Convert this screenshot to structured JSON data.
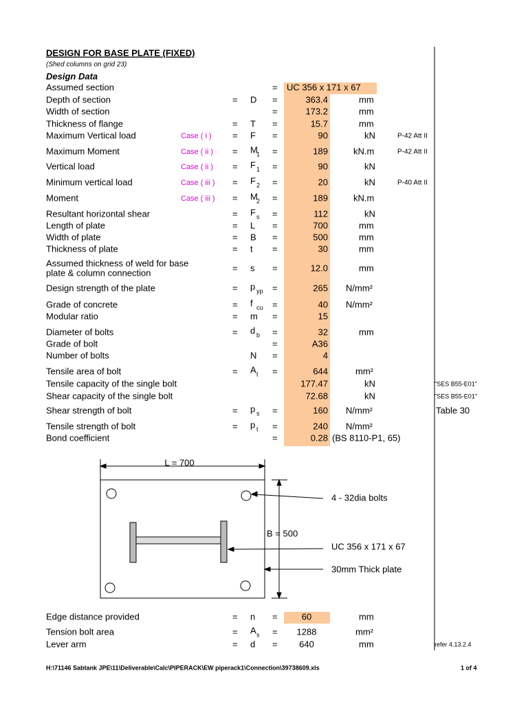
{
  "header": {
    "title": "DESIGN FOR BASE PLATE (FIXED)",
    "subtitle": "(Shed columns on grid 23)",
    "section": "Design Data"
  },
  "rows": [
    {
      "label": [
        "Assumed section"
      ],
      "eq2": "=",
      "value": "UC 356 x 171 x 67"
    },
    {
      "label": [
        "Depth of section"
      ],
      "eq1": "=",
      "sym": "D",
      "eq2": "=",
      "value": "363.4",
      "unit": "mm"
    },
    {
      "label": [
        "Width of section"
      ],
      "eq2": "=",
      "value": "173.2",
      "unit": "mm"
    },
    {
      "label": [
        "Thickness of flange"
      ],
      "eq1": "=",
      "sym": "T",
      "eq2": "=",
      "value": "15.7",
      "unit": "mm"
    },
    {
      "label": [
        "Maximum Vertical load"
      ],
      "case": "Case ( i )",
      "eq1": "=",
      "sym": "F",
      "eq2": "=",
      "value": "90",
      "unit": "kN",
      "ref": "P-42 Att II"
    },
    {
      "label": [
        "Maximum Moment"
      ],
      "case": "Case ( ii )",
      "eq1": "=",
      "sym": "M",
      "sub": "1",
      "eq2": "=",
      "value": "189",
      "unit": "kN.m",
      "ref": "P-42 Att II"
    },
    {
      "label": [
        "Vertical load"
      ],
      "case": "Case ( ii )",
      "eq1": "=",
      "sym": "F",
      "sub": "1",
      "eq2": "=",
      "value": "90",
      "unit": "kN"
    },
    {
      "label": [
        "Minimum vertical load"
      ],
      "case": "Case ( iii )",
      "eq1": "=",
      "sym": "F",
      "sub": "2",
      "eq2": "=",
      "value": "20",
      "unit": "kN",
      "ref": "P-40 Att II"
    },
    {
      "label": [
        "Moment"
      ],
      "case": "Case ( iii )",
      "eq1": "=",
      "sym": "M",
      "sub": "2",
      "eq2": "=",
      "value": "189",
      "unit": "kN.m"
    },
    {
      "label": [
        "Resultant horizontal shear"
      ],
      "eq1": "=",
      "sym": "F",
      "sub": "s",
      "eq2": "=",
      "value": "112",
      "unit": "kN"
    },
    {
      "label": [
        "Length of plate"
      ],
      "eq1": "=",
      "sym": "L",
      "eq2": "=",
      "value": "700",
      "unit": "mm"
    },
    {
      "label": [
        "Width of plate"
      ],
      "eq1": "=",
      "sym": "B",
      "eq2": "=",
      "value": "500",
      "unit": "mm"
    },
    {
      "label": [
        "Thickness of plate"
      ],
      "eq1": "=",
      "sym": "t",
      "eq2": "=",
      "value": "30",
      "unit": "mm"
    },
    {
      "label": [
        "Assumed thickness of weld for base",
        "plate & column connection"
      ],
      "eq1": "=",
      "sym": "s",
      "eq2": "=",
      "value": "12.0",
      "unit": "mm"
    },
    {
      "label": [
        "Design strength of the plate"
      ],
      "eq1": "=",
      "sym": "p",
      "sub": "yp",
      "eq2": "=",
      "value": "265",
      "unit": "N/mm²"
    },
    {
      "label": [
        "Grade of concrete"
      ],
      "eq1": "=",
      "sym": "f",
      "sub": "cu",
      "eq2": "=",
      "value": "40",
      "unit": "N/mm²"
    },
    {
      "label": [
        "Modular ratio"
      ],
      "eq1": "=",
      "sym": "m",
      "eq2": "=",
      "value": "15"
    },
    {
      "label": [
        "Diameter of bolts"
      ],
      "eq1": "=",
      "sym": "d",
      "sub": "b",
      "eq2": "=",
      "value": "32",
      "unit": "mm"
    },
    {
      "label": [
        "Grade of bolt"
      ],
      "eq2": "=",
      "value": "A36"
    },
    {
      "label": [
        "Number of bolts"
      ],
      "sym": "N",
      "eq2": "=",
      "value": "4"
    },
    {
      "label": [
        "Tensile area of bolt"
      ],
      "eq1": "=",
      "sym": "A",
      "sub": "t",
      "eq2": "=",
      "value": "644",
      "unit": "mm²"
    },
    {
      "label": [
        "Tensile capacity of the single bolt"
      ],
      "value": "177.47",
      "unit": "kN",
      "ref": "\"SES B55-E01\""
    },
    {
      "label": [
        "Shear capacity of the single bolt"
      ],
      "value": "72.68",
      "unit": "kN",
      "ref": "\"SES B55-E01\""
    },
    {
      "label": [
        "Shear strength of bolt"
      ],
      "eq1": "=",
      "sym": "p",
      "sub": "s",
      "eq2": "=",
      "value": "160",
      "unit": "N/mm²",
      "ref": "Table 30"
    },
    {
      "label": [
        "Tensile strength of bolt"
      ],
      "eq1": "=",
      "sym": "p",
      "sub": "t",
      "eq2": "=",
      "value": "240",
      "unit": "N/mm²"
    },
    {
      "label": [
        "Bond coefficient"
      ],
      "eq2": "=",
      "value": "0.28",
      "unit": "(BS 8110-P1, 65)"
    }
  ],
  "diagram": {
    "length": "L = 700",
    "breadth": "B = 500",
    "bolts": "4 - 32dia bolts",
    "section": "UC 356 x 171 x 67",
    "plate": "30mm  Thick plate"
  },
  "bottom_rows": [
    {
      "label": [
        "Edge distance provided"
      ],
      "eq1": "=",
      "sym": "n",
      "eq2": "=",
      "value": "60",
      "unit": "mm"
    },
    {
      "label": [
        "Tension bolt area"
      ],
      "eq1": "=",
      "sym": "A",
      "sub": "s",
      "eq2": "=",
      "value": "1288",
      "unit": "mm²"
    },
    {
      "label": [
        "Lever arm"
      ],
      "eq1": "=",
      "sym": "d",
      "eq2": "=",
      "value": "640",
      "unit": "mm",
      "ref": "refer 4.13.2.4"
    }
  ],
  "footer": {
    "path": "H:\\71146 Sabtank JPE\\11\\Deliverable\\Calc\\PIPERACK\\EW piperack1\\Connection\\39738609.xls",
    "page": "1 of 4"
  }
}
